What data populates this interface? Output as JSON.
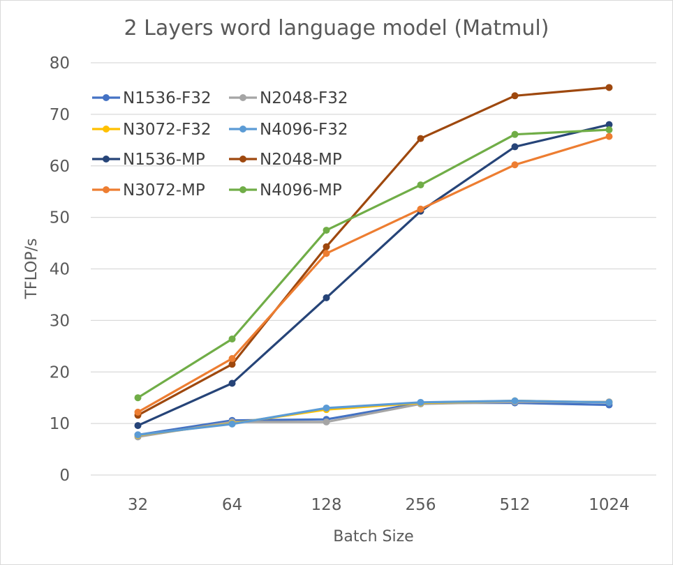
{
  "chart_data": {
    "type": "line",
    "title": "2 Layers word language model (Matmul)",
    "xlabel": "Batch Size",
    "ylabel": "TFLOP/s",
    "categories": [
      "32",
      "64",
      "128",
      "256",
      "512",
      "1024"
    ],
    "ylim": [
      0,
      80
    ],
    "yticks": [
      "0",
      "10",
      "20",
      "30",
      "40",
      "50",
      "60",
      "70",
      "80"
    ],
    "grid": true,
    "legend_position": "top-left",
    "series": [
      {
        "name": "N1536-F32",
        "color": "#4472c4",
        "values": [
          7.8,
          10.6,
          10.8,
          14.0,
          14.0,
          13.6
        ]
      },
      {
        "name": "N2048-F32",
        "color": "#a5a5a5",
        "values": [
          7.4,
          10.3,
          10.3,
          13.8,
          14.2,
          14.2
        ]
      },
      {
        "name": "N3072-F32",
        "color": "#ffc000",
        "values": [
          7.7,
          10.0,
          12.7,
          14.0,
          14.4,
          14.1
        ]
      },
      {
        "name": "N4096-F32",
        "color": "#5b9bd5",
        "values": [
          7.8,
          9.9,
          13.0,
          14.1,
          14.4,
          14.1
        ]
      },
      {
        "name": "N1536-MP",
        "color": "#264478",
        "values": [
          9.6,
          17.8,
          34.4,
          51.2,
          63.7,
          68.0
        ]
      },
      {
        "name": "N2048-MP",
        "color": "#9e480e",
        "values": [
          11.6,
          21.5,
          44.3,
          65.3,
          73.6,
          75.2
        ]
      },
      {
        "name": "N3072-MP",
        "color": "#ed7d31",
        "values": [
          12.2,
          22.6,
          43.0,
          51.6,
          60.2,
          65.7
        ]
      },
      {
        "name": "N4096-MP",
        "color": "#70ad47",
        "values": [
          15.0,
          26.4,
          47.5,
          56.3,
          66.1,
          67.0
        ]
      }
    ]
  }
}
